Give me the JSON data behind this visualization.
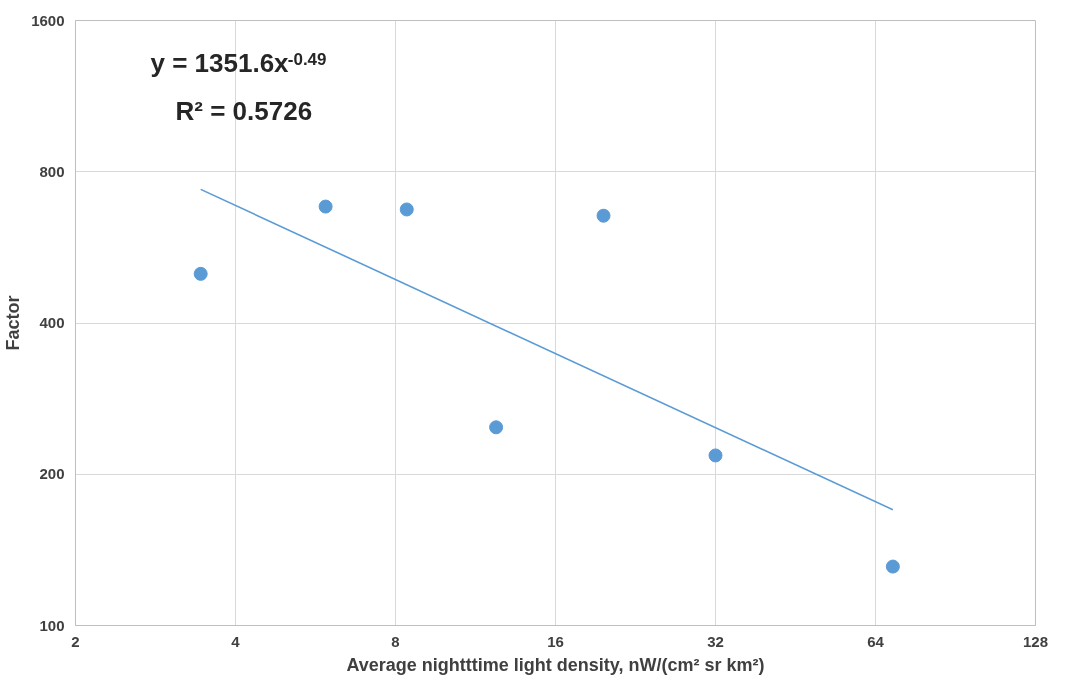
{
  "chart_data": {
    "type": "scatter",
    "xlabel": "Average nightttime light density, nW/(cm² sr km²)",
    "ylabel": "Factor",
    "log": "xy",
    "xlim": [
      2,
      128
    ],
    "ylim": [
      100,
      1600
    ],
    "xticks": [
      2,
      4,
      8,
      16,
      32,
      64,
      128
    ],
    "yticks": [
      100,
      200,
      400,
      800,
      1600
    ],
    "grid": true,
    "series": [
      {
        "color": "#5b9bd5",
        "marker": "circle",
        "x": [
          3.44,
          5.91,
          8.4,
          12.37,
          19.7,
          32,
          69
        ],
        "values": [
          501,
          682,
          673,
          248,
          654,
          218,
          131
        ]
      },
      {
        "type": "line",
        "color": "#5b9bd5",
        "marker": "none",
        "line_style": "solid",
        "x": [
          3.44,
          69
        ],
        "values": [
          738,
          170
        ]
      }
    ],
    "annotations": [
      "y = 1351.6x$^{-0.49}$",
      "R² = 0.5726"
    ]
  }
}
